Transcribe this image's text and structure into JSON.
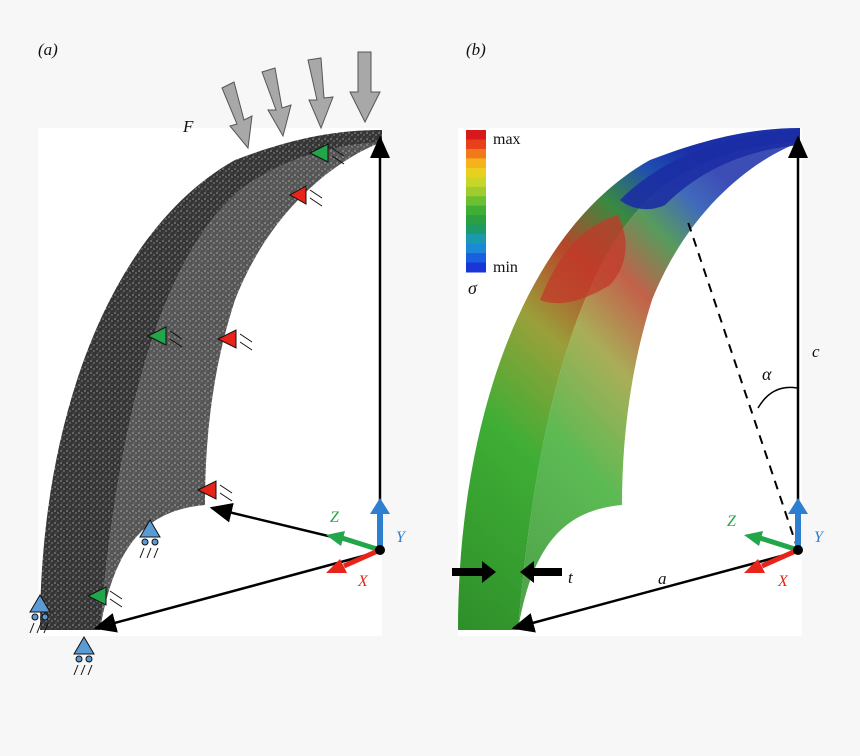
{
  "panels": [
    {
      "label": "(a)"
    },
    {
      "label": "(b)"
    }
  ],
  "panel_a": {
    "force_label": "F",
    "axes": {
      "x": "X",
      "y": "Y",
      "z": "Z"
    }
  },
  "panel_b": {
    "legend": {
      "max": "max",
      "min": "min",
      "symbol": "σ",
      "colors": [
        "#d7191c",
        "#e8401a",
        "#f07a1a",
        "#f5b21c",
        "#e8d01f",
        "#c8d62a",
        "#a0cc2e",
        "#6cbf30",
        "#3fae35",
        "#2aa043",
        "#1e9a6a",
        "#1a9ab0",
        "#1a8ad8",
        "#1a5fe0",
        "#1a35d8"
      ]
    },
    "labels": {
      "alpha": "α",
      "c": "c",
      "a": "a",
      "t": "t"
    },
    "axes": {
      "x": "X",
      "y": "Y",
      "z": "Z"
    }
  },
  "colors": {
    "x_axis": "#e8231a",
    "y_axis": "#2f7fd0",
    "z_axis": "#22a64a",
    "support": "#5b9bd5",
    "force_arrow": "#9a9a9a"
  }
}
